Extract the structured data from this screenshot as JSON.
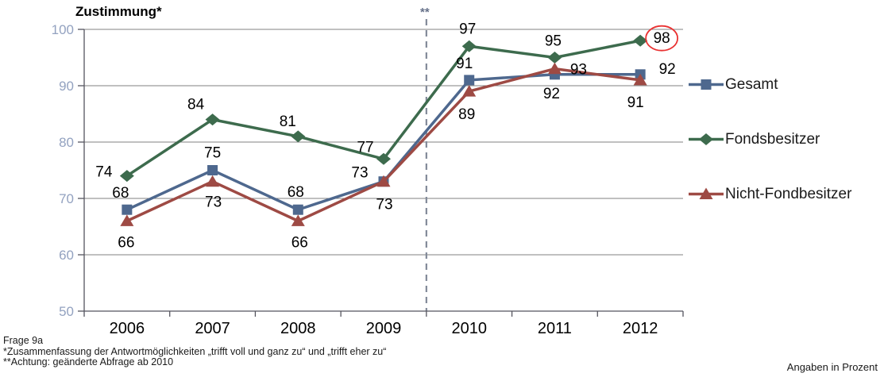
{
  "title": "Zustimmung*",
  "footnotes": {
    "line1": "Frage 9a",
    "line2": "*Zusammenfassung der Antwortmöglichkeiten „trifft voll und ganz zu“ und „trifft eher zu“",
    "line3": "**Achtung: geänderte Abfrage ab 2010",
    "units_note": "Angaben in Prozent"
  },
  "chart_data": {
    "type": "line",
    "title": "Zustimmung*",
    "categories": [
      "2006",
      "2007",
      "2008",
      "2009",
      "2010",
      "2011",
      "2012"
    ],
    "series": [
      {
        "name": "Gesamt",
        "marker": "square",
        "color": "#4e688e",
        "values": [
          68,
          75,
          68,
          73,
          91,
          92,
          92
        ],
        "label_offsets": [
          [
            -8,
            -21
          ],
          [
            0,
            -22
          ],
          [
            -3,
            -22
          ],
          [
            -30,
            -11
          ],
          [
            -6,
            -21
          ],
          [
            -4,
            24
          ],
          [
            34,
            -7
          ]
        ]
      },
      {
        "name": "Fondsbesitzer",
        "marker": "diamond",
        "color": "#3d6b4d",
        "values": [
          74,
          84,
          81,
          77,
          97,
          95,
          98
        ],
        "label_offsets": [
          [
            -29,
            -5
          ],
          [
            -21,
            -19
          ],
          [
            -13,
            -19
          ],
          [
            -23,
            -15
          ],
          [
            -2,
            -22
          ],
          [
            -2,
            -21
          ],
          [
            27,
            -3
          ]
        ]
      },
      {
        "name": "Nicht-Fondbesitzer",
        "marker": "triangle",
        "color": "#9e4a44",
        "values": [
          66,
          73,
          66,
          73,
          89,
          93,
          91
        ],
        "label_offsets": [
          [
            -1,
            27
          ],
          [
            1,
            26
          ],
          [
            2,
            27
          ],
          [
            1,
            29
          ],
          [
            -3,
            29
          ],
          [
            30,
            1
          ],
          [
            -6,
            28
          ]
        ]
      }
    ],
    "ylim": [
      50,
      100
    ],
    "yticks": [
      50,
      60,
      70,
      80,
      90,
      100
    ],
    "grid": "horizontal",
    "legend_position": "right",
    "break_line": {
      "between": [
        "2009",
        "2010"
      ],
      "label": "**",
      "style": "dashed"
    },
    "highlight": {
      "series": "Fondsbesitzer",
      "category": "2012",
      "value": 98,
      "style": "red-circle"
    },
    "annotation_note": "Angaben in Prozent"
  },
  "colors": {
    "gesamt": "#4e688e",
    "fondsbesitzer": "#3d6b4d",
    "nicht_fondbesitzer": "#9e4a44",
    "gridline": "#808080",
    "axis": "#55555f",
    "ytick_label": "#93a2c0",
    "xtick_label": "#000000",
    "data_label": "#000000",
    "dashed_line": "#828a99",
    "break_marker": "#66718a",
    "highlight_circle": "#e93232"
  }
}
